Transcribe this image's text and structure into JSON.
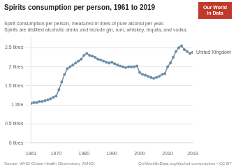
{
  "chart_data": {
    "type": "line",
    "title": "Spirits consumption per person, 1961 to 2019",
    "subtitle": [
      "Spirit consumption per person, measured in litres of pure alcohol per year.",
      "Spirits are distilled alcoholic drinks and include gin, rum, whiskey, tequila, and vodka."
    ],
    "annotations": [
      "Source: WHO Global Health Observatory (WHO)",
      "OurWorldInData.org/alcohol-consumption • CC BY",
      "Our World",
      "in Data"
    ],
    "x": [
      1961,
      1962,
      1963,
      1964,
      1965,
      1966,
      1967,
      1968,
      1969,
      1970,
      1971,
      1972,
      1973,
      1974,
      1975,
      1976,
      1977,
      1978,
      1979,
      1980,
      1981,
      1982,
      1983,
      1984,
      1985,
      1986,
      1987,
      1988,
      1989,
      1990,
      1991,
      1992,
      1993,
      1994,
      1995,
      1996,
      1997,
      1998,
      1999,
      2000,
      2001,
      2002,
      2003,
      2004,
      2005,
      2006,
      2007,
      2008,
      2009,
      2010,
      2011,
      2012,
      2013,
      2014,
      2015,
      2016,
      2017,
      2018,
      2019
    ],
    "series": [
      {
        "name": "United Kingdom",
        "color": "#6b8fa8",
        "values": [
          1.04,
          1.06,
          1.06,
          1.09,
          1.09,
          1.11,
          1.13,
          1.16,
          1.2,
          1.23,
          1.4,
          1.6,
          1.8,
          1.95,
          2.0,
          2.05,
          2.1,
          2.15,
          2.2,
          2.3,
          2.35,
          2.3,
          2.28,
          2.25,
          2.2,
          2.18,
          2.15,
          2.12,
          2.1,
          2.12,
          2.08,
          2.05,
          2.02,
          2.0,
          1.98,
          2.0,
          2.0,
          2.0,
          2.02,
          1.85,
          1.8,
          1.78,
          1.75,
          1.72,
          1.7,
          1.72,
          1.75,
          1.8,
          1.82,
          2.0,
          2.1,
          2.25,
          2.4,
          2.5,
          2.55,
          2.45,
          2.4,
          2.35,
          2.38
        ]
      }
    ],
    "xlim": [
      1961,
      2019
    ],
    "xticks": [
      1961,
      1970,
      1980,
      1990,
      2000,
      2010,
      2019
    ],
    "ylim": [
      0,
      2.8
    ],
    "yticks": [
      {
        "value": 2.5,
        "label": "2.5 litres"
      },
      {
        "value": 2.0,
        "label": "2 litres"
      },
      {
        "value": 1.5,
        "label": "1.5 litres"
      },
      {
        "value": 1.0,
        "label": "1 litre"
      },
      {
        "value": 0.5,
        "label": "0.5 litres"
      },
      {
        "value": 0.0,
        "label": "0 litres"
      }
    ],
    "grid": true
  }
}
